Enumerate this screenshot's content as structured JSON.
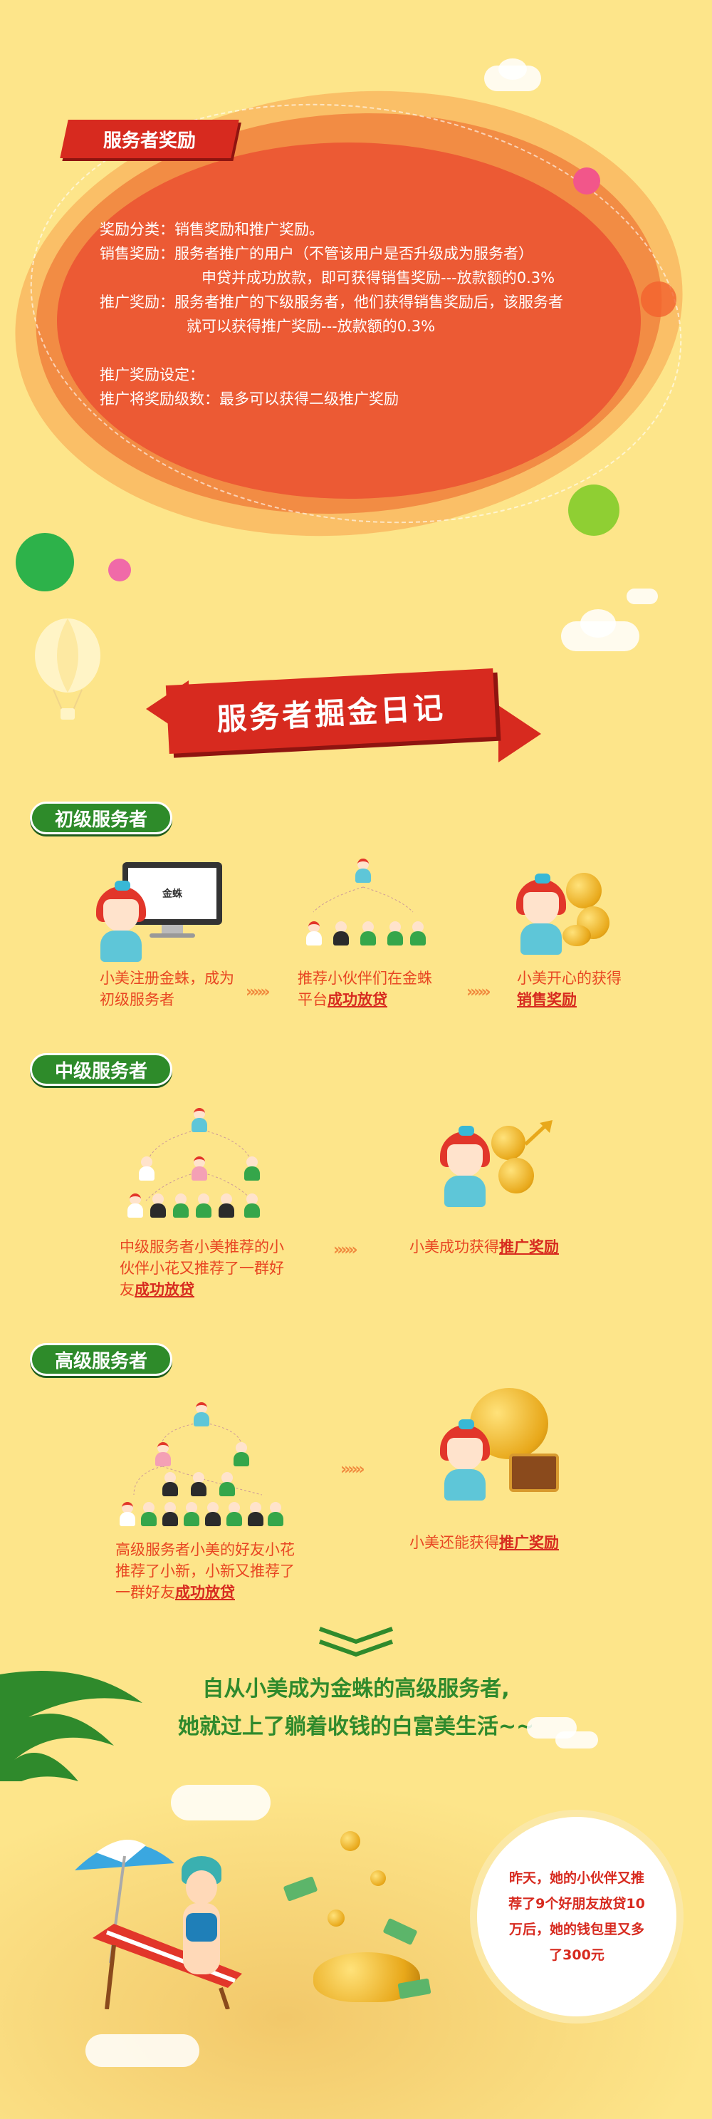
{
  "reward_section": {
    "badge": "服务者奖励",
    "lines": [
      "奖励分类：销售奖励和推广奖励。",
      "销售奖励：服务者推广的用户（不管该用户是否升级成为服务者）",
      "申贷并成功放款，即可获得销售奖励---放款额的0.3%",
      "推广奖励：服务者推广的下级服务者，他们获得销售奖励后，该服务者",
      "就可以获得推广奖励---放款额的0.3%",
      "",
      "推广奖励设定：",
      "推广将奖励级数：最多可以获得二级推广奖励"
    ]
  },
  "diary": {
    "title": "服务者掘金日记"
  },
  "junior": {
    "badge": "初级服务者",
    "monitor_brand": "金蛛",
    "step1": "小美注册金蛛，成为初级服务者",
    "step2_prefix": "推荐小伙伴们在金蛛平台",
    "step2_highlight": "成功放贷",
    "step3_prefix": "小美开心的获得",
    "step3_highlight": "销售奖励"
  },
  "middle": {
    "badge": "中级服务者",
    "step1_prefix": "中级服务者小美推荐的小伙伴小花又推荐了一群好友",
    "step1_highlight": "成功放贷",
    "step2_prefix": "小美成功获得",
    "step2_highlight": "推广奖励"
  },
  "senior": {
    "badge": "高级服务者",
    "step1_prefix": "高级服务者小美的好友小花推荐了小新，小新又推荐了一群好友",
    "step1_highlight": "成功放贷",
    "step2_prefix": "小美还能获得",
    "step2_highlight": "推广奖励"
  },
  "slogan": {
    "line1": "自从小美成为金蛛的高级服务者,",
    "line2": "她就过上了躺着收钱的白富美生活~~"
  },
  "bubble": {
    "text": "昨天，她的小伙伴又推荐了9个好朋友放贷10万后，她的钱包里又多了300元"
  },
  "colors": {
    "background": "#fde58a",
    "red": "#d72a1f",
    "green": "#2e8b2a",
    "orange": "#ec5a34"
  },
  "icons": [
    "hot-air-balloon-icon",
    "cloud-icon",
    "palm-leaf-icon",
    "umbrella-icon",
    "gold-coins-icon",
    "chevron-down-icon"
  ]
}
